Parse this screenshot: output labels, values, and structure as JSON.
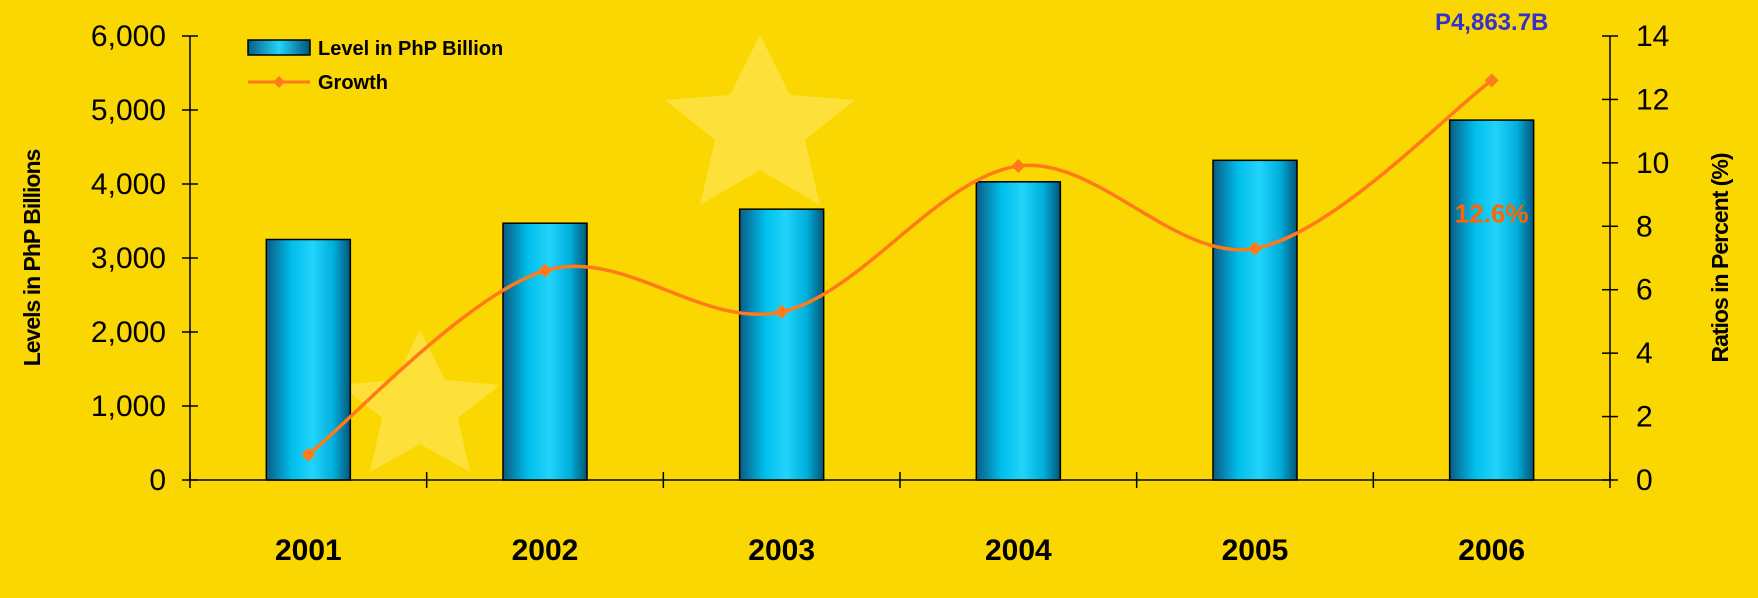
{
  "chart_data": {
    "type": "bar",
    "categories": [
      "2001",
      "2002",
      "2003",
      "2004",
      "2005",
      "2006"
    ],
    "series": [
      {
        "name": "Level in PhP Billion",
        "type": "bar",
        "axis": "left",
        "values": [
          3250,
          3470,
          3660,
          4030,
          4320,
          4863.7
        ]
      },
      {
        "name": "Growth",
        "type": "line",
        "axis": "right",
        "values": [
          0.8,
          6.6,
          5.3,
          9.9,
          7.3,
          12.6
        ]
      }
    ],
    "y_left": {
      "label": "Levels in PhP Billions",
      "range": [
        0,
        6000
      ],
      "ticks": [
        "0",
        "1,000",
        "2,000",
        "3,000",
        "4,000",
        "5,000",
        "6,000"
      ]
    },
    "y_right": {
      "label": "Ratios in Percent (%)",
      "range": [
        0,
        14
      ],
      "ticks": [
        "0",
        "2",
        "4",
        "6",
        "8",
        "10",
        "12",
        "14"
      ]
    },
    "annotations": [
      {
        "text": "P4,863.7B",
        "category": "2006",
        "color": "#3333CC"
      },
      {
        "text": "12.6%",
        "category": "2006",
        "color": "#FF6600"
      }
    ],
    "legend_position": "top-left",
    "grid": false,
    "colors": {
      "background": "#FAD700",
      "bar": "#00C8F0",
      "line": "#FF7A1A"
    }
  }
}
